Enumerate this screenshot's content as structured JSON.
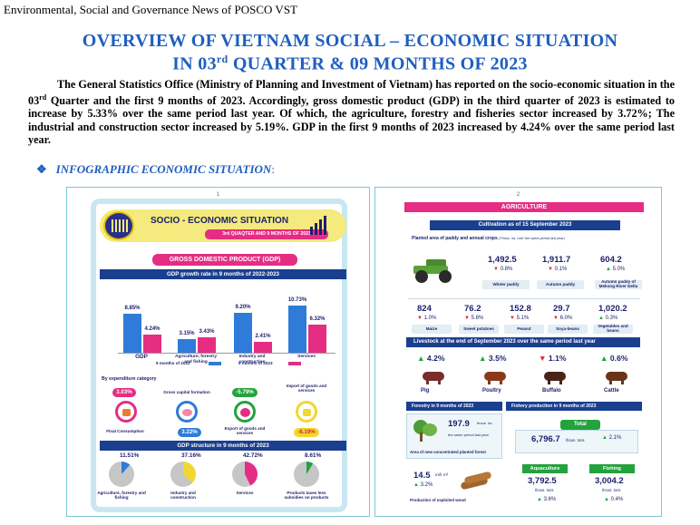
{
  "header": {
    "source": "Environmental, Social and Governance News of POSCO VST",
    "title_line1": "OVERVIEW  OF VIETNAM  SOCIAL – ECONOMIC  SITUATION",
    "title_line2_pre": "IN 03",
    "title_line2_sup": "rd",
    "title_line2_post": " QUARTER  & 09 MONTHS  OF 2023"
  },
  "intro": {
    "part1": "The General Statistics Office (Ministry of Planning and Investment of Vietnam) has reported on the socio-economic situation in the 03",
    "sup": "rd",
    "part2": " Quarter and the first 9 months of 2023. Accordingly, gross domestic product (GDP) in the third quarter of 2023 is estimated to increase by 5.33% over the same period last year. Of which, the agriculture, forestry and fisheries sector increased by 3.72%; The industrial and construction sector increased by 5.19%. GDP in the first 9 months of 2023 increased by 4.24% over the same period last year."
  },
  "section": {
    "bullet": "❖",
    "heading": "INFOGRAPHIC ECONOMIC SITUATION",
    "colon": ":"
  },
  "left": {
    "page": "1",
    "title": "SOCIO - ECONOMIC SITUATION",
    "subtitle": "3rd QUAQTER AND 9 MONTHS OF 2023",
    "gdp_header": "GROSS DOMESTIC PRODUCT (GDP)",
    "growth_header": "GDP growth rate in 9 months of 2022-2023",
    "chart_data": {
      "type": "bar",
      "categories": [
        "GDP",
        "Agriculture, forestry and fishing",
        "Industry and construction",
        "Services"
      ],
      "series": [
        {
          "name": "9 months of 2022",
          "values": [
            8.85,
            3.15,
            9.2,
            10.73
          ],
          "color": "#2e7bd9"
        },
        {
          "name": "9 months of 2023",
          "values": [
            4.24,
            3.43,
            2.41,
            6.32
          ],
          "color": "#e52d84"
        }
      ],
      "value_labels_2022": [
        "8.85%",
        "3.15%",
        "9.20%",
        "10.73%"
      ],
      "value_labels_2023": [
        "4.24%",
        "3.43%",
        "2.41%",
        "6.32%"
      ],
      "ylim": [
        0,
        12
      ]
    },
    "legend_2022": "9 months of 2022",
    "legend_2023": "9 months of 2023",
    "expenditure": {
      "header": "By expenditure category",
      "final_consumption_value": "3.03%",
      "final_consumption_label": "Final Consumption",
      "capital_label": "Gross capital formation",
      "capital_value": "3.22%",
      "export_value": "-5.79%",
      "export_label": "Export of goods and services",
      "import_label": "Import of goods and services",
      "import_value": "-8.19%"
    },
    "structure": {
      "header": "GDP structure in 9 months of 2023",
      "items": [
        {
          "value": "11.51%",
          "label": "Agriculture, forestry and fishing",
          "share": 11.51,
          "color": "#2e7bd9"
        },
        {
          "value": "37.16%",
          "label": "Industry and construction",
          "share": 37.16,
          "color": "#f2d730"
        },
        {
          "value": "42.72%",
          "label": "Services",
          "share": 42.72,
          "color": "#e52d84"
        },
        {
          "value": "8.61%",
          "label": "Products taxes less subsidies on products",
          "share": 8.61,
          "color": "#23a23e"
        }
      ]
    }
  },
  "right": {
    "page": "2",
    "agri_header": "AGRICULTURE",
    "cultivation_header": "Cultivation as of 15 September 2023",
    "planted_note": "Planted area of paddy and annual crops",
    "planted_unit": "(Thous. ha, over the same period last year)",
    "paddy": [
      {
        "value": "1,492.5",
        "change": "0.8%",
        "dir": "down",
        "label": "Winter paddy"
      },
      {
        "value": "1,911.7",
        "change": "0.1%",
        "dir": "down",
        "label": "Autumn paddy"
      },
      {
        "value": "604.2",
        "change": "5.0%",
        "dir": "up",
        "label": "Autumn paddy of Mekong River Delta"
      }
    ],
    "crops": [
      {
        "value": "824",
        "change": "1.0%",
        "dir": "down",
        "label": "Maize"
      },
      {
        "value": "76.2",
        "change": "5.8%",
        "dir": "down",
        "label": "Sweet potatoes"
      },
      {
        "value": "152.8",
        "change": "5.1%",
        "dir": "down",
        "label": "Peanut"
      },
      {
        "value": "29.7",
        "change": "6.0%",
        "dir": "down",
        "label": "Soya-beans"
      },
      {
        "value": "1,020.2",
        "change": "0.3%",
        "dir": "up",
        "label": "Vegetables and beans"
      }
    ],
    "livestock_header": "Livestock at the end of September 2023 over the same period last year",
    "livestock": [
      {
        "value": "4.2%",
        "dir": "up",
        "label": "Pig"
      },
      {
        "value": "3.5%",
        "dir": "up",
        "label": "Poultry"
      },
      {
        "value": "1.1%",
        "dir": "down",
        "label": "Buffalo"
      },
      {
        "value": "0.6%",
        "dir": "up",
        "label": "Cattle"
      }
    ],
    "forestry": {
      "header": "Forestry in 9 months of 2023",
      "planted_value": "197.9",
      "planted_unit": "thous. ha",
      "planted_period": "the same period last year",
      "planted_change": "",
      "planted_label": "Area of new concentrated planted forest",
      "wood_value": "14.5",
      "wood_unit": "mill. m³",
      "wood_change": "3.2%",
      "wood_label": "Production of exploited wood"
    },
    "fishery": {
      "header": "Fishery production in 9 months of 2023",
      "total_label": "Total",
      "total_value": "6,796.7",
      "total_unit": "thous. tons",
      "total_change": "2.1%",
      "aqua_label": "Aquaculture",
      "aqua_value": "3,792.5",
      "aqua_unit": "thous. tons",
      "aqua_change": "3.6%",
      "fishing_label": "Fishing",
      "fishing_value": "3,004.2",
      "fishing_unit": "thous. tons",
      "fishing_change": "0.4%"
    }
  }
}
